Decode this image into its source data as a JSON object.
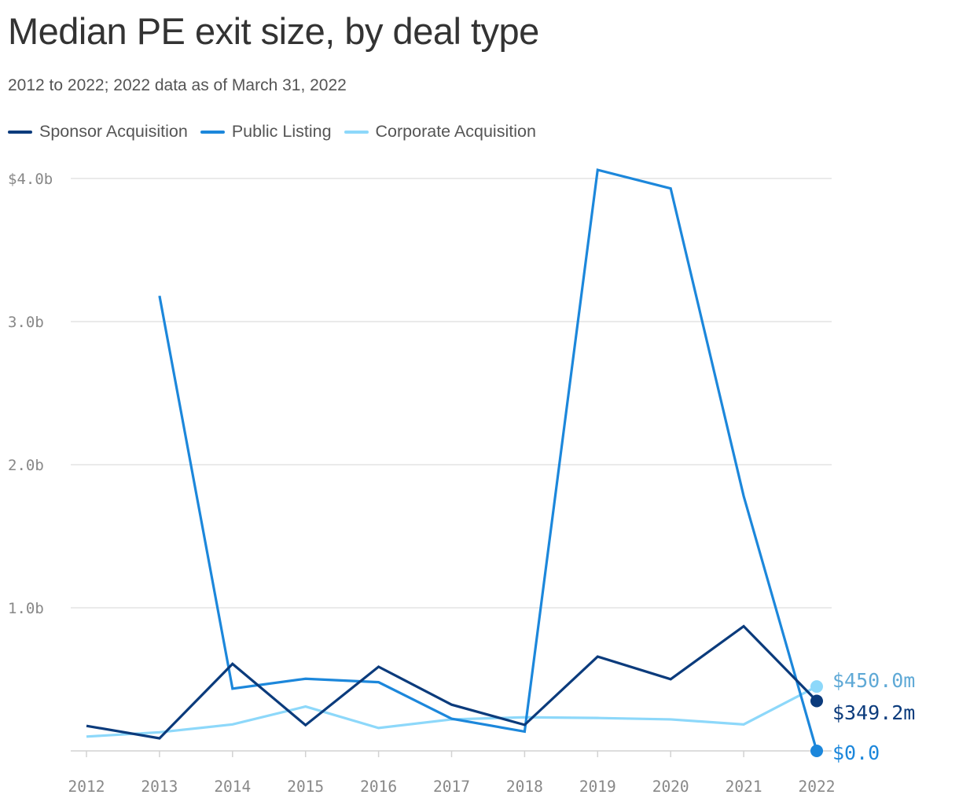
{
  "chart_data": {
    "type": "line",
    "title": "Median PE exit size, by deal type",
    "subtitle": "2012 to 2022; 2022 data as of March 31, 2022",
    "x": [
      "2012",
      "2013",
      "2014",
      "2015",
      "2016",
      "2017",
      "2018",
      "2019",
      "2020",
      "2021",
      "2022"
    ],
    "y_ticks": [
      {
        "value": 1.0,
        "label": "1.0b"
      },
      {
        "value": 2.0,
        "label": "2.0b"
      },
      {
        "value": 3.0,
        "label": "3.0b"
      },
      {
        "value": 4.0,
        "label": "$4.0b"
      }
    ],
    "ylim": [
      0,
      4.0
    ],
    "xlabel": "",
    "ylabel": "",
    "grid": true,
    "legend_position": "top-left",
    "series": [
      {
        "name": "Sponsor Acquisition",
        "color": "#0b3b7c",
        "values": [
          0.175,
          0.088,
          0.608,
          0.18,
          0.588,
          0.323,
          0.182,
          0.659,
          0.501,
          0.871,
          0.3492
        ],
        "end_label": "$349.2m"
      },
      {
        "name": "Public Listing",
        "color": "#1c87db",
        "values": [
          null,
          3.18,
          0.435,
          0.504,
          0.48,
          0.225,
          0.135,
          4.06,
          3.93,
          1.78,
          0.0
        ],
        "end_label": "$0.0"
      },
      {
        "name": "Corporate Acquisition",
        "color": "#8dd8fa",
        "values": [
          0.1,
          0.13,
          0.185,
          0.31,
          0.16,
          0.22,
          0.235,
          0.23,
          0.22,
          0.185,
          0.45
        ],
        "end_label": "$450.0m"
      }
    ]
  },
  "colors": {
    "grid": "#e3e3e3",
    "axis": "#d2d2d2",
    "tick_text": "#888888",
    "end_label_corporate": "#5fa9d6"
  }
}
